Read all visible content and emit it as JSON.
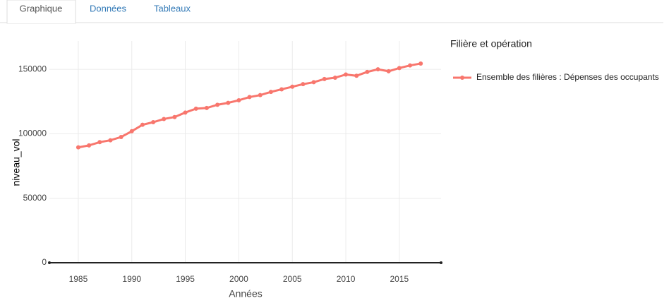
{
  "tabs": [
    "Graphique",
    "Données",
    "Tableaux"
  ],
  "chart_data": {
    "type": "line",
    "x_label": "Années",
    "y_label": "niveau_vol",
    "legend_title": "Filière et opération",
    "x": [
      1985,
      1986,
      1987,
      1988,
      1989,
      1990,
      1991,
      1992,
      1993,
      1994,
      1995,
      1996,
      1997,
      1998,
      1999,
      2000,
      2001,
      2002,
      2003,
      2004,
      2005,
      2006,
      2007,
      2008,
      2009,
      2010,
      2011,
      2012,
      2013,
      2014,
      2015,
      2016,
      2017
    ],
    "series": [
      {
        "name": "Ensemble des filières : Dépenses des occupants",
        "color": "#f8766d",
        "values": [
          89500,
          91000,
          93500,
          95000,
          97500,
          102000,
          107000,
          109000,
          111500,
          113000,
          116500,
          119500,
          120000,
          122500,
          124000,
          126000,
          128500,
          130000,
          132500,
          134500,
          136500,
          138500,
          140000,
          142500,
          143500,
          146000,
          145000,
          148000,
          150000,
          148500,
          151000,
          153000,
          154500
        ]
      }
    ],
    "xlim": [
      1982.3,
      2018.9
    ],
    "ylim": [
      0,
      172000
    ],
    "xticks": [
      1985,
      1990,
      1995,
      2000,
      2005,
      2010,
      2015
    ],
    "yticks": [
      0,
      50000,
      100000,
      150000
    ],
    "grid": true,
    "legend": "right"
  }
}
